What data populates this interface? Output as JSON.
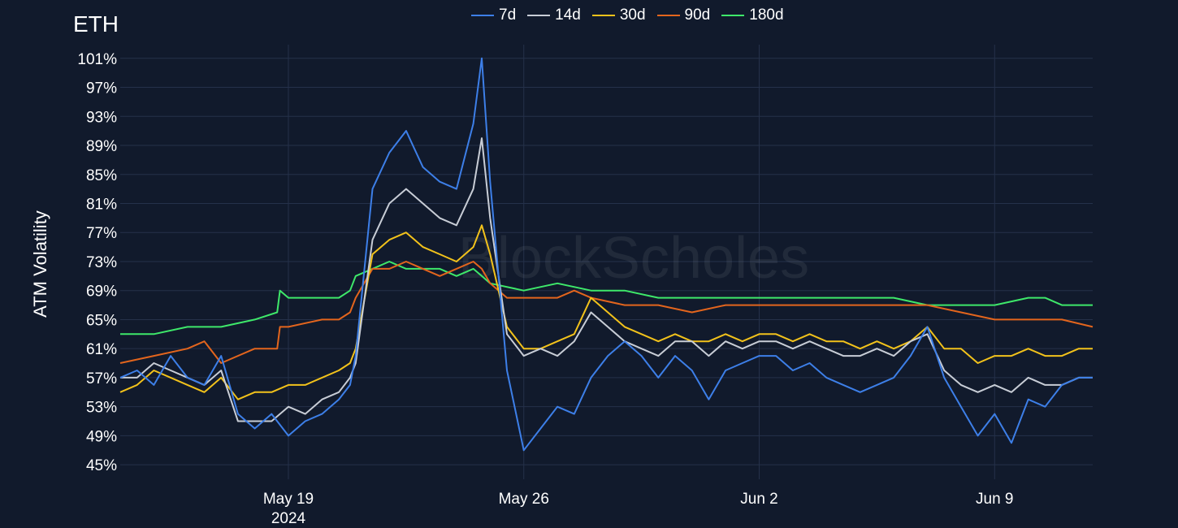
{
  "chart_data": {
    "type": "line",
    "title": "ETH",
    "ylabel": "ATM Volatility",
    "xlabel": "",
    "watermark": "BlockScholes",
    "ylim": [
      43,
      104
    ],
    "xlim": [
      "2024-05-14",
      "2024-06-11 22:00"
    ],
    "y_ticks": [
      "101%",
      "97%",
      "93%",
      "89%",
      "85%",
      "81%",
      "77%",
      "73%",
      "69%",
      "65%",
      "61%",
      "57%",
      "53%",
      "49%",
      "45%"
    ],
    "y_tick_values": [
      101,
      97,
      93,
      89,
      85,
      81,
      77,
      73,
      69,
      65,
      61,
      57,
      53,
      49,
      45
    ],
    "x_ticks": [
      {
        "date": "2024-05-19",
        "label": "May 19",
        "sublabel": "2024"
      },
      {
        "date": "2024-05-26",
        "label": "May 26",
        "sublabel": ""
      },
      {
        "date": "2024-06-02",
        "label": "Jun 2",
        "sublabel": ""
      },
      {
        "date": "2024-06-09",
        "label": "Jun 9",
        "sublabel": ""
      }
    ],
    "grid": true,
    "legend_position": "top-center",
    "series": [
      {
        "name": "7d",
        "color": "#3d7fe8",
        "x": [
          "2024-05-14 00:00",
          "2024-05-14 12:00",
          "2024-05-15 00:00",
          "2024-05-15 12:00",
          "2024-05-16 00:00",
          "2024-05-16 12:00",
          "2024-05-17 00:00",
          "2024-05-17 12:00",
          "2024-05-18 00:00",
          "2024-05-18 12:00",
          "2024-05-19 00:00",
          "2024-05-19 12:00",
          "2024-05-20 00:00",
          "2024-05-20 12:00",
          "2024-05-20 20:00",
          "2024-05-21 00:00",
          "2024-05-21 12:00",
          "2024-05-22 00:00",
          "2024-05-22 12:00",
          "2024-05-23 00:00",
          "2024-05-23 12:00",
          "2024-05-24 00:00",
          "2024-05-24 12:00",
          "2024-05-24 18:00",
          "2024-05-25 00:00",
          "2024-05-25 12:00",
          "2024-05-26 00:00",
          "2024-05-26 12:00",
          "2024-05-27 00:00",
          "2024-05-27 12:00",
          "2024-05-28 00:00",
          "2024-05-28 12:00",
          "2024-05-29 00:00",
          "2024-05-29 12:00",
          "2024-05-30 00:00",
          "2024-05-30 12:00",
          "2024-05-31 00:00",
          "2024-05-31 12:00",
          "2024-06-01 00:00",
          "2024-06-01 12:00",
          "2024-06-02 00:00",
          "2024-06-02 12:00",
          "2024-06-03 00:00",
          "2024-06-03 12:00",
          "2024-06-04 00:00",
          "2024-06-04 12:00",
          "2024-06-05 00:00",
          "2024-06-05 12:00",
          "2024-06-06 00:00",
          "2024-06-06 12:00",
          "2024-06-07 00:00",
          "2024-06-07 12:00",
          "2024-06-08 00:00",
          "2024-06-08 12:00",
          "2024-06-09 00:00",
          "2024-06-09 12:00",
          "2024-06-10 00:00",
          "2024-06-10 12:00",
          "2024-06-11 00:00",
          "2024-06-11 12:00",
          "2024-06-11 22:00"
        ],
        "values": [
          57,
          58,
          56,
          60,
          57,
          56,
          60,
          52,
          50,
          52,
          49,
          51,
          52,
          54,
          56,
          60,
          83,
          88,
          91,
          86,
          84,
          83,
          92,
          101,
          84,
          58,
          47,
          50,
          53,
          52,
          57,
          60,
          62,
          60,
          57,
          60,
          58,
          54,
          58,
          59,
          60,
          60,
          58,
          59,
          57,
          56,
          55,
          56,
          57,
          60,
          64,
          57,
          53,
          49,
          52,
          48,
          54,
          53,
          56,
          57,
          57
        ]
      },
      {
        "name": "14d",
        "color": "#c8cdd6",
        "x": [
          "2024-05-14 00:00",
          "2024-05-14 12:00",
          "2024-05-15 00:00",
          "2024-05-15 12:00",
          "2024-05-16 00:00",
          "2024-05-16 12:00",
          "2024-05-17 00:00",
          "2024-05-17 12:00",
          "2024-05-18 00:00",
          "2024-05-18 12:00",
          "2024-05-19 00:00",
          "2024-05-19 12:00",
          "2024-05-20 00:00",
          "2024-05-20 12:00",
          "2024-05-20 20:00",
          "2024-05-21 00:00",
          "2024-05-21 12:00",
          "2024-05-22 00:00",
          "2024-05-22 12:00",
          "2024-05-23 00:00",
          "2024-05-23 12:00",
          "2024-05-24 00:00",
          "2024-05-24 12:00",
          "2024-05-24 18:00",
          "2024-05-25 00:00",
          "2024-05-25 12:00",
          "2024-05-26 00:00",
          "2024-05-26 12:00",
          "2024-05-27 00:00",
          "2024-05-27 12:00",
          "2024-05-28 00:00",
          "2024-05-28 12:00",
          "2024-05-29 00:00",
          "2024-05-29 12:00",
          "2024-05-30 00:00",
          "2024-05-30 12:00",
          "2024-05-31 00:00",
          "2024-05-31 12:00",
          "2024-06-01 00:00",
          "2024-06-01 12:00",
          "2024-06-02 00:00",
          "2024-06-02 12:00",
          "2024-06-03 00:00",
          "2024-06-03 12:00",
          "2024-06-04 00:00",
          "2024-06-04 12:00",
          "2024-06-05 00:00",
          "2024-06-05 12:00",
          "2024-06-06 00:00",
          "2024-06-06 12:00",
          "2024-06-07 00:00",
          "2024-06-07 12:00",
          "2024-06-08 00:00",
          "2024-06-08 12:00",
          "2024-06-09 00:00",
          "2024-06-09 12:00",
          "2024-06-10 00:00",
          "2024-06-10 12:00",
          "2024-06-11 00:00",
          "2024-06-11 12:00",
          "2024-06-11 22:00"
        ],
        "values": [
          57,
          57,
          59,
          58,
          57,
          56,
          58,
          51,
          51,
          51,
          53,
          52,
          54,
          55,
          57,
          59,
          76,
          81,
          83,
          81,
          79,
          78,
          83,
          90,
          79,
          63,
          60,
          61,
          60,
          62,
          66,
          64,
          62,
          61,
          60,
          62,
          62,
          60,
          62,
          61,
          62,
          62,
          61,
          62,
          61,
          60,
          60,
          61,
          60,
          62,
          63,
          58,
          56,
          55,
          56,
          55,
          57,
          56,
          56,
          57,
          57
        ]
      },
      {
        "name": "30d",
        "color": "#f2c21b",
        "x": [
          "2024-05-14 00:00",
          "2024-05-14 12:00",
          "2024-05-15 00:00",
          "2024-05-15 12:00",
          "2024-05-16 00:00",
          "2024-05-16 12:00",
          "2024-05-17 00:00",
          "2024-05-17 12:00",
          "2024-05-18 00:00",
          "2024-05-18 12:00",
          "2024-05-19 00:00",
          "2024-05-19 12:00",
          "2024-05-20 00:00",
          "2024-05-20 12:00",
          "2024-05-20 20:00",
          "2024-05-21 00:00",
          "2024-05-21 12:00",
          "2024-05-22 00:00",
          "2024-05-22 12:00",
          "2024-05-23 00:00",
          "2024-05-23 12:00",
          "2024-05-24 00:00",
          "2024-05-24 12:00",
          "2024-05-24 18:00",
          "2024-05-25 00:00",
          "2024-05-25 12:00",
          "2024-05-26 00:00",
          "2024-05-26 12:00",
          "2024-05-27 00:00",
          "2024-05-27 12:00",
          "2024-05-28 00:00",
          "2024-05-28 12:00",
          "2024-05-29 00:00",
          "2024-05-29 12:00",
          "2024-05-30 00:00",
          "2024-05-30 12:00",
          "2024-05-31 00:00",
          "2024-05-31 12:00",
          "2024-06-01 00:00",
          "2024-06-01 12:00",
          "2024-06-02 00:00",
          "2024-06-02 12:00",
          "2024-06-03 00:00",
          "2024-06-03 12:00",
          "2024-06-04 00:00",
          "2024-06-04 12:00",
          "2024-06-05 00:00",
          "2024-06-05 12:00",
          "2024-06-06 00:00",
          "2024-06-06 12:00",
          "2024-06-07 00:00",
          "2024-06-07 12:00",
          "2024-06-08 00:00",
          "2024-06-08 12:00",
          "2024-06-09 00:00",
          "2024-06-09 12:00",
          "2024-06-10 00:00",
          "2024-06-10 12:00",
          "2024-06-11 00:00",
          "2024-06-11 12:00",
          "2024-06-11 22:00"
        ],
        "values": [
          55,
          56,
          58,
          57,
          56,
          55,
          57,
          54,
          55,
          55,
          56,
          56,
          57,
          58,
          59,
          61,
          74,
          76,
          77,
          75,
          74,
          73,
          75,
          78,
          74,
          64,
          61,
          61,
          62,
          63,
          68,
          66,
          64,
          63,
          62,
          63,
          62,
          62,
          63,
          62,
          63,
          63,
          62,
          63,
          62,
          62,
          61,
          62,
          61,
          62,
          64,
          61,
          61,
          59,
          60,
          60,
          61,
          60,
          60,
          61,
          61
        ]
      },
      {
        "name": "90d",
        "color": "#e3651d",
        "x": [
          "2024-05-14 00:00",
          "2024-05-15 00:00",
          "2024-05-16 00:00",
          "2024-05-16 12:00",
          "2024-05-17 00:00",
          "2024-05-18 00:00",
          "2024-05-18 16:00",
          "2024-05-18 18:00",
          "2024-05-19 00:00",
          "2024-05-20 00:00",
          "2024-05-20 12:00",
          "2024-05-20 20:00",
          "2024-05-21 00:00",
          "2024-05-21 12:00",
          "2024-05-22 00:00",
          "2024-05-22 12:00",
          "2024-05-23 00:00",
          "2024-05-23 12:00",
          "2024-05-24 00:00",
          "2024-05-24 12:00",
          "2024-05-24 18:00",
          "2024-05-25 00:00",
          "2024-05-25 12:00",
          "2024-05-26 00:00",
          "2024-05-27 00:00",
          "2024-05-27 12:00",
          "2024-05-28 00:00",
          "2024-05-29 00:00",
          "2024-05-30 00:00",
          "2024-05-31 00:00",
          "2024-06-01 00:00",
          "2024-06-02 00:00",
          "2024-06-03 00:00",
          "2024-06-04 00:00",
          "2024-06-05 00:00",
          "2024-06-06 00:00",
          "2024-06-07 00:00",
          "2024-06-08 00:00",
          "2024-06-09 00:00",
          "2024-06-10 00:00",
          "2024-06-11 00:00",
          "2024-06-11 22:00"
        ],
        "values": [
          59,
          60,
          61,
          62,
          59,
          61,
          61,
          64,
          64,
          65,
          65,
          66,
          68,
          72,
          72,
          73,
          72,
          71,
          72,
          73,
          72,
          70,
          68,
          68,
          68,
          69,
          68,
          67,
          67,
          66,
          67,
          67,
          67,
          67,
          67,
          67,
          67,
          66,
          65,
          65,
          65,
          64
        ]
      },
      {
        "name": "180d",
        "color": "#3ee86a",
        "x": [
          "2024-05-14 00:00",
          "2024-05-15 00:00",
          "2024-05-16 00:00",
          "2024-05-17 00:00",
          "2024-05-18 00:00",
          "2024-05-18 16:00",
          "2024-05-18 18:00",
          "2024-05-19 00:00",
          "2024-05-20 00:00",
          "2024-05-20 12:00",
          "2024-05-20 20:00",
          "2024-05-21 00:00",
          "2024-05-21 12:00",
          "2024-05-22 00:00",
          "2024-05-22 12:00",
          "2024-05-23 00:00",
          "2024-05-23 12:00",
          "2024-05-24 00:00",
          "2024-05-24 12:00",
          "2024-05-24 18:00",
          "2024-05-25 00:00",
          "2024-05-26 00:00",
          "2024-05-27 00:00",
          "2024-05-28 00:00",
          "2024-05-29 00:00",
          "2024-05-30 00:00",
          "2024-05-31 00:00",
          "2024-06-01 00:00",
          "2024-06-02 00:00",
          "2024-06-03 00:00",
          "2024-06-04 00:00",
          "2024-06-05 00:00",
          "2024-06-06 00:00",
          "2024-06-07 00:00",
          "2024-06-08 00:00",
          "2024-06-09 00:00",
          "2024-06-10 00:00",
          "2024-06-10 12:00",
          "2024-06-11 00:00",
          "2024-06-11 22:00"
        ],
        "values": [
          63,
          63,
          64,
          64,
          65,
          66,
          69,
          68,
          68,
          68,
          69,
          71,
          72,
          73,
          72,
          72,
          72,
          71,
          72,
          71,
          70,
          69,
          70,
          69,
          69,
          68,
          68,
          68,
          68,
          68,
          68,
          68,
          68,
          67,
          67,
          67,
          68,
          68,
          67,
          67
        ]
      }
    ]
  }
}
